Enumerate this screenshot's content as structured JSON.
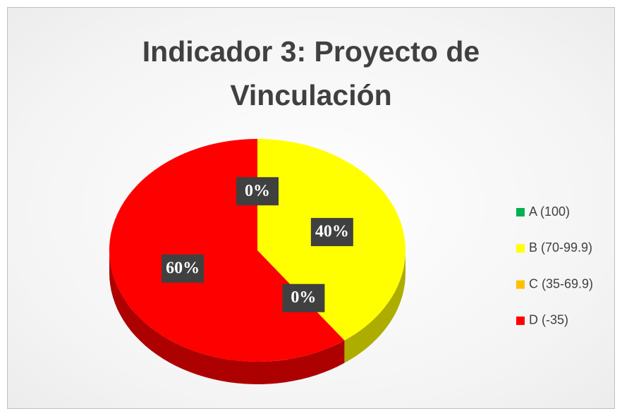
{
  "chart_data": {
    "type": "pie",
    "title": "Indicador 3: Proyecto de Vinculación",
    "categories": [
      "A (100)",
      "B (70-99.9)",
      "C (35-69.9)",
      "D (-35)"
    ],
    "values": [
      0,
      40,
      0,
      60
    ],
    "value_labels": [
      "0%",
      "40%",
      "0%",
      "60%"
    ],
    "colors": [
      "#00b050",
      "#ffff00",
      "#ffc000",
      "#ff0000"
    ],
    "legend": "right"
  }
}
